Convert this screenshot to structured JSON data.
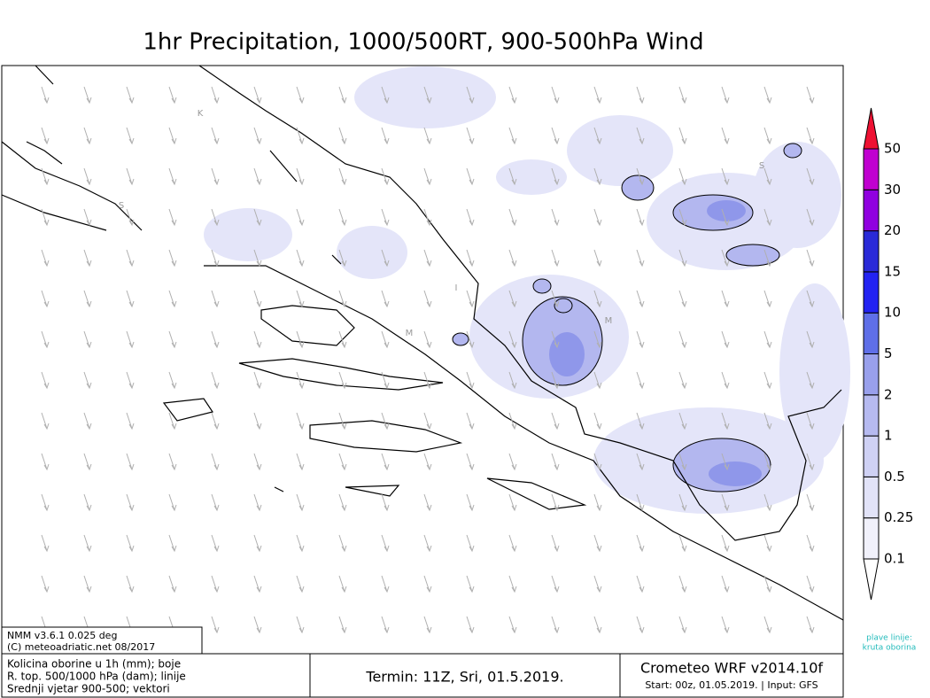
{
  "header": {
    "title": "1hr Precipitation, 1000/500RT, 900-500hPa Wind"
  },
  "colorbar": {
    "labels": [
      "0.1",
      "0.25",
      "0.5",
      "1",
      "2",
      "5",
      "10",
      "15",
      "20",
      "30",
      "50"
    ],
    "colors": [
      "#ffffff",
      "#f1f1fb",
      "#e2e3f8",
      "#cfd1f4",
      "#b6baf0",
      "#99a0ec",
      "#5f6fe8",
      "#2323f2",
      "#2a2ad8",
      "#9000e0",
      "#c000d0",
      "#ee1133"
    ]
  },
  "map": {
    "labels": [
      "K",
      "S",
      "S",
      "M",
      "M",
      "I"
    ]
  },
  "footer": {
    "info": [
      "NMM v3.6.1 0.025 deg",
      "(C) meteoadriatic.net 08/2017"
    ],
    "legend": [
      "Kolicina oborine u 1h (mm); boje",
      "R. top. 500/1000 hPa (dam); linije",
      "Srednji vjetar 900-500; vektori"
    ],
    "termin": "Termin: 11Z, Sri, 01.5.2019.",
    "model": "Crometeo WRF v2014.10f",
    "start": "Start: 00z, 01.05.2019. | Input: GFS",
    "note": [
      "plave linije:",
      "kruta oborina"
    ]
  }
}
